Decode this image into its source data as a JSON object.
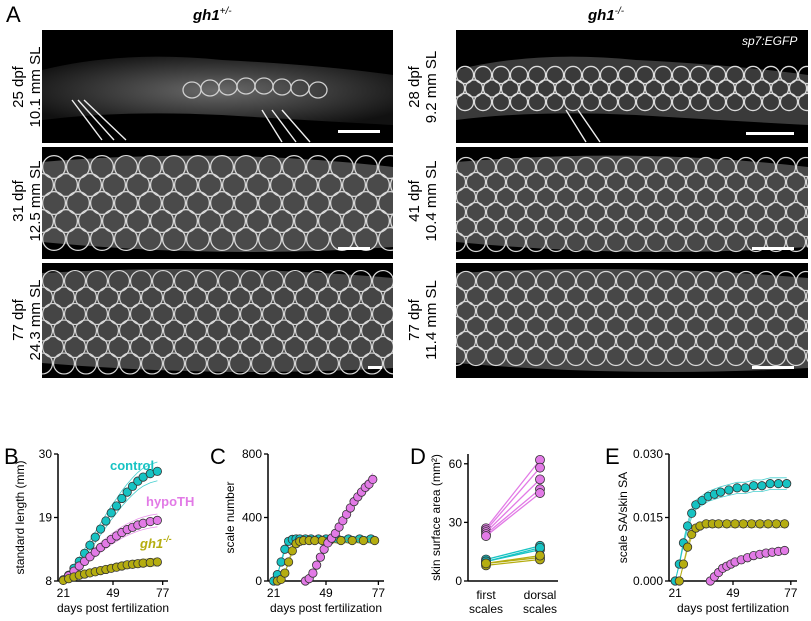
{
  "panelA": {
    "letter": "A",
    "left_title_base": "gh1",
    "left_title_sup": "+/-",
    "right_title_base": "gh1",
    "right_title_sup": "-/-",
    "transgene_label": "sp7:EGFP",
    "left_rows": [
      {
        "line1": "25 dpf",
        "line2": "10.1 mm SL"
      },
      {
        "line1": "31 dpf",
        "line2": "12.5 mm SL"
      },
      {
        "line1": "77 dpf",
        "line2": "24.3 mm SL"
      }
    ],
    "right_rows": [
      {
        "line1": "28 dpf",
        "line2": "9.2 mm SL"
      },
      {
        "line1": "41 dpf",
        "line2": "10.4 mm SL"
      },
      {
        "line1": "77 dpf",
        "line2": "11.4 mm SL"
      }
    ]
  },
  "chart_data": [
    {
      "letter": "B",
      "type": "scatter",
      "ylabel": "standard length (mm)",
      "xlabel": "days post fertilization",
      "xticks": [
        21,
        49,
        77
      ],
      "yticks": [
        8,
        19,
        30
      ],
      "xlim": [
        18,
        80
      ],
      "ylim": [
        8,
        30
      ],
      "series": [
        {
          "name": "control",
          "color": "#17c3c3",
          "x": [
            21,
            24,
            27,
            30,
            33,
            36,
            39,
            42,
            45,
            48,
            51,
            54,
            57,
            60,
            63,
            66,
            70,
            74
          ],
          "y": [
            8.2,
            9.0,
            10.2,
            11.4,
            12.8,
            14.2,
            15.6,
            17.0,
            18.4,
            19.8,
            21.0,
            22.3,
            23.4,
            24.4,
            25.3,
            26.0,
            26.6,
            27.0
          ]
        },
        {
          "name": "hypoTH",
          "color": "#e27ae6",
          "x": [
            21,
            24,
            27,
            30,
            33,
            36,
            39,
            42,
            45,
            48,
            51,
            54,
            57,
            60,
            63,
            66,
            70,
            74
          ],
          "y": [
            8.2,
            8.9,
            9.7,
            10.6,
            11.4,
            12.2,
            13.0,
            13.8,
            14.5,
            15.2,
            15.8,
            16.4,
            16.9,
            17.3,
            17.7,
            18.0,
            18.3,
            18.5
          ]
        },
        {
          "name": "gh1",
          "sup": "-/-",
          "color": "#b5ad10",
          "x": [
            21,
            24,
            27,
            30,
            33,
            36,
            39,
            42,
            45,
            48,
            51,
            54,
            57,
            60,
            63,
            66,
            70,
            74
          ],
          "y": [
            8.1,
            8.4,
            8.7,
            9.0,
            9.2,
            9.4,
            9.6,
            9.8,
            10.0,
            10.2,
            10.4,
            10.6,
            10.8,
            10.9,
            11.0,
            11.1,
            11.2,
            11.3
          ]
        }
      ]
    },
    {
      "letter": "C",
      "type": "scatter",
      "ylabel": "scale number",
      "xlabel": "days post fertilization",
      "xticks": [
        21,
        49,
        77
      ],
      "yticks": [
        0,
        400,
        800
      ],
      "xlim": [
        18,
        80
      ],
      "ylim": [
        0,
        800
      ],
      "series": [
        {
          "name": "control",
          "color": "#17c3c3",
          "x": [
            21,
            23,
            25,
            27,
            29,
            31,
            33,
            35,
            38,
            41,
            45,
            49,
            55,
            61,
            67,
            73
          ],
          "y": [
            0,
            40,
            120,
            200,
            250,
            262,
            265,
            265,
            265,
            265,
            265,
            265,
            265,
            265,
            265,
            265
          ]
        },
        {
          "name": "gh1",
          "color": "#b5ad10",
          "x": [
            23,
            25,
            27,
            29,
            31,
            33,
            35,
            37,
            40,
            43,
            47,
            51,
            57,
            63,
            69,
            75
          ],
          "y": [
            0,
            10,
            50,
            120,
            190,
            235,
            250,
            255,
            255,
            255,
            255,
            255,
            255,
            255,
            255,
            255
          ]
        },
        {
          "name": "hypoTH",
          "color": "#e27ae6",
          "x": [
            38,
            40,
            42,
            44,
            46,
            48,
            50,
            52,
            54,
            56,
            58,
            60,
            62,
            64,
            66,
            68,
            70,
            72,
            74
          ],
          "y": [
            0,
            15,
            50,
            100,
            150,
            200,
            240,
            270,
            300,
            340,
            380,
            420,
            460,
            500,
            530,
            560,
            590,
            610,
            640
          ]
        }
      ]
    },
    {
      "letter": "D",
      "type": "line",
      "ylabel": "skin surface area (mm²)",
      "categories": [
        "first scales",
        "dorsal scales"
      ],
      "cat_line1": [
        "first",
        "dorsal"
      ],
      "cat_line2": [
        "scales",
        "scales"
      ],
      "yticks": [
        0,
        30,
        60
      ],
      "ylim": [
        0,
        65
      ],
      "series": [
        {
          "name": "hypoTH",
          "color": "#e27ae6",
          "pairs": [
            [
              27,
              62
            ],
            [
              26,
              58
            ],
            [
              25,
              52
            ],
            [
              24,
              47
            ],
            [
              23,
              45
            ]
          ]
        },
        {
          "name": "control",
          "color": "#17c3c3",
          "pairs": [
            [
              11,
              18
            ],
            [
              10,
              16
            ],
            [
              10,
              17
            ]
          ]
        },
        {
          "name": "gh1",
          "color": "#b5ad10",
          "pairs": [
            [
              9,
              12
            ],
            [
              8,
              11
            ],
            [
              9,
              13
            ]
          ]
        }
      ]
    },
    {
      "letter": "E",
      "type": "scatter",
      "ylabel": "scale SA/skin SA",
      "xlabel": "days post fertilization",
      "xticks": [
        21,
        49,
        77
      ],
      "yticks": [
        "0.000",
        "0.015",
        "0.030"
      ],
      "xlim": [
        18,
        80
      ],
      "ylim": [
        0,
        0.03
      ],
      "series": [
        {
          "name": "control",
          "color": "#17c3c3",
          "x": [
            21,
            23,
            25,
            27,
            29,
            31,
            34,
            37,
            40,
            43,
            47,
            51,
            55,
            59,
            63,
            67,
            71,
            75
          ],
          "y": [
            0.0,
            0.004,
            0.009,
            0.013,
            0.016,
            0.018,
            0.019,
            0.02,
            0.0205,
            0.021,
            0.0215,
            0.022,
            0.022,
            0.0225,
            0.0225,
            0.023,
            0.023,
            0.023
          ]
        },
        {
          "name": "gh1",
          "color": "#b5ad10",
          "x": [
            23,
            25,
            27,
            29,
            31,
            33,
            36,
            39,
            42,
            46,
            50,
            54,
            58,
            62,
            66,
            70,
            74
          ],
          "y": [
            0.0,
            0.004,
            0.008,
            0.011,
            0.0125,
            0.013,
            0.0135,
            0.0135,
            0.0135,
            0.0135,
            0.0135,
            0.0135,
            0.0135,
            0.0135,
            0.0135,
            0.0135,
            0.0135
          ]
        },
        {
          "name": "hypoTH",
          "color": "#e27ae6",
          "x": [
            38,
            40,
            42,
            44,
            46,
            48,
            50,
            53,
            56,
            59,
            62,
            65,
            68,
            71,
            74
          ],
          "y": [
            0.0,
            0.001,
            0.002,
            0.003,
            0.0035,
            0.004,
            0.0045,
            0.005,
            0.0055,
            0.006,
            0.0063,
            0.0066,
            0.0068,
            0.007,
            0.0072
          ]
        }
      ]
    }
  ]
}
